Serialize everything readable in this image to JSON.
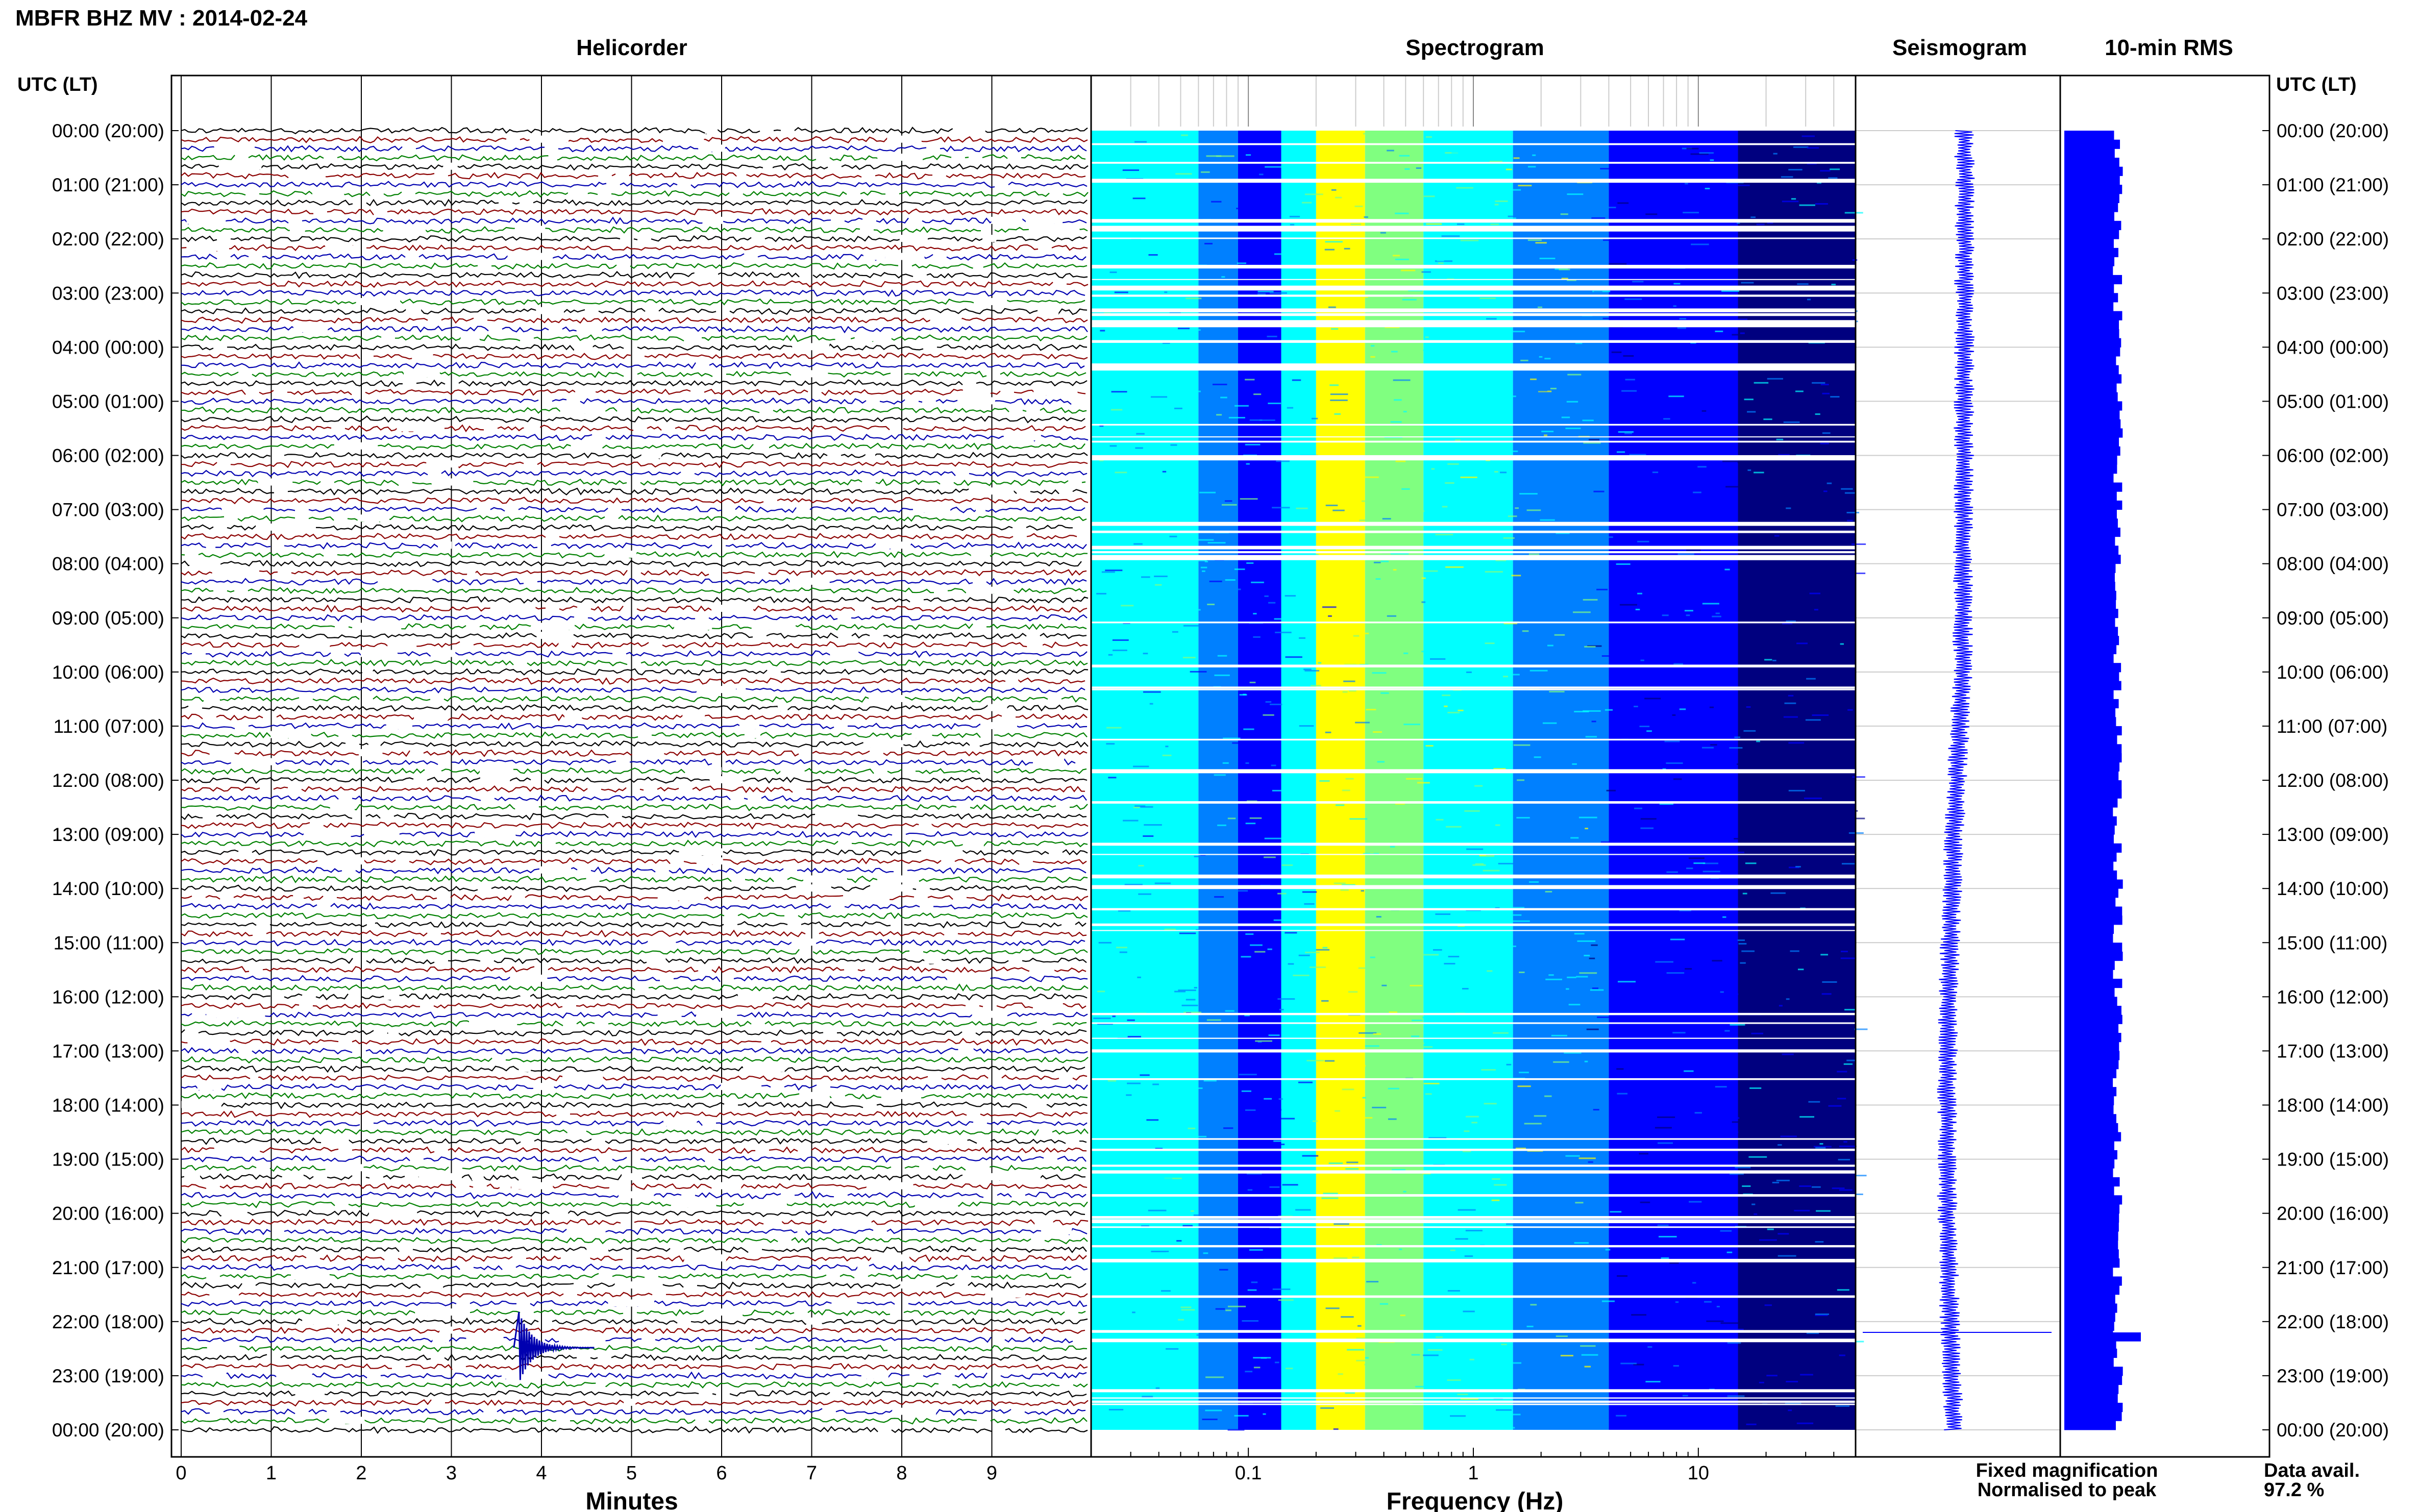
{
  "header": {
    "title": "MBFR BHZ MV : 2014-02-24"
  },
  "panels": {
    "helicorder": "Helicorder",
    "spectrogram": "Spectrogram",
    "seismogram": "Seismogram",
    "rms": "10-min RMS"
  },
  "axes": {
    "time_label_left": "UTC (LT)",
    "time_label_right": "UTC (LT)",
    "minutes_label": "Minutes",
    "frequency_label": "Frequency (Hz)"
  },
  "legend": {
    "fixed": "Fixed magnification",
    "normalised": "Normalised to peak",
    "fixed_color": "#0000ff",
    "normalised_color": "#ff0000"
  },
  "data_availability": {
    "label": "Data avail.",
    "value": "97.2 %"
  },
  "trace_colors": [
    "#000000",
    "#8b0000",
    "#0000b0",
    "#008000"
  ],
  "spectrogram_colors": [
    "#00007f",
    "#0000ff",
    "#0080ff",
    "#00ffff",
    "#80ff80",
    "#ffff00"
  ],
  "rms_color": "#0000ff",
  "chart_data": [
    {
      "type": "line",
      "name_ref": "helicorder",
      "x_ticks": [
        "0",
        "1",
        "2",
        "3",
        "4",
        "5",
        "6",
        "7",
        "8",
        "9"
      ],
      "xlim": [
        0,
        10
      ],
      "rows_per_hour": 6,
      "hours": 24,
      "time_ticks": [
        "00:00 (20:00)",
        "01:00 (21:00)",
        "02:00 (22:00)",
        "03:00 (23:00)",
        "04:00 (00:00)",
        "05:00 (01:00)",
        "06:00 (02:00)",
        "07:00 (03:00)",
        "08:00 (04:00)",
        "09:00 (05:00)",
        "10:00 (06:00)",
        "11:00 (07:00)",
        "12:00 (08:00)",
        "13:00 (09:00)",
        "14:00 (10:00)",
        "15:00 (11:00)",
        "16:00 (12:00)",
        "17:00 (13:00)",
        "18:00 (14:00)",
        "19:00 (15:00)",
        "20:00 (16:00)",
        "21:00 (17:00)",
        "22:00 (18:00)",
        "23:00 (19:00)",
        "00:00 (20:00)"
      ],
      "events": [
        {
          "hour": 22.2,
          "minute": 3.75,
          "amplitude": "large"
        }
      ]
    },
    {
      "type": "heatmap",
      "name_ref": "spectrogram",
      "x_scale": "log",
      "xlim": [
        0.02,
        50
      ],
      "x_ticks": [
        "0.1",
        "1",
        "10"
      ]
    },
    {
      "type": "line",
      "name_ref": "seismogram",
      "spike_hour": 22.2
    },
    {
      "type": "bar",
      "name_ref": "rms",
      "spike_hour": 22.2
    }
  ]
}
